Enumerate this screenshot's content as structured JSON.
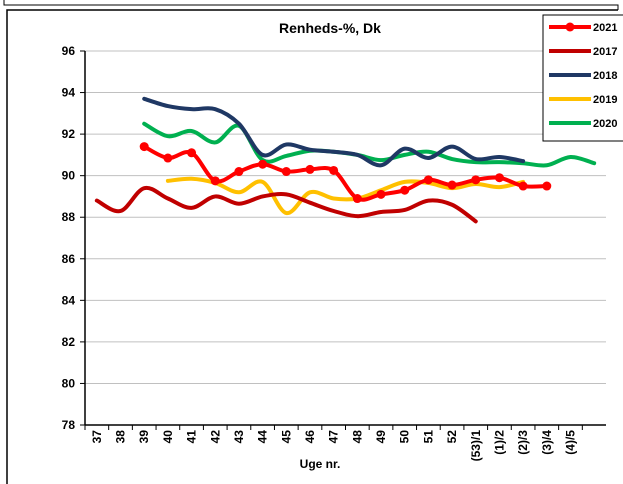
{
  "chart_data": {
    "type": "line",
    "title": "Renheds-%, Dk",
    "xlabel": "Uge nr.",
    "categories": [
      "37",
      "38",
      "39",
      "40",
      "41",
      "42",
      "43",
      "44",
      "45",
      "46",
      "47",
      "48",
      "49",
      "50",
      "51",
      "52",
      "(53)/1",
      "(1)/2",
      "(2)/3",
      "(3)/4",
      "(4)/5",
      null
    ],
    "ylim": [
      78,
      96
    ],
    "yticks": [
      78,
      80,
      82,
      84,
      86,
      88,
      90,
      92,
      94,
      96
    ],
    "grid": true,
    "legend": "upper right",
    "series": [
      {
        "name": "2021",
        "color": "#ff0000",
        "marker": true,
        "values": [
          null,
          null,
          91.4,
          90.85,
          91.1,
          89.75,
          90.2,
          90.55,
          90.2,
          90.3,
          90.25,
          88.9,
          89.1,
          89.3,
          89.8,
          89.55,
          89.8,
          89.9,
          89.5,
          89.5,
          null,
          null
        ]
      },
      {
        "name": "2017",
        "color": "#c00000",
        "values": [
          88.8,
          88.3,
          89.4,
          88.9,
          88.45,
          89.0,
          88.65,
          89.0,
          89.1,
          88.7,
          88.3,
          88.05,
          88.25,
          88.35,
          88.8,
          88.6,
          87.8,
          null,
          null,
          null,
          null,
          null
        ]
      },
      {
        "name": "2018",
        "color": "#1f3864",
        "values": [
          null,
          null,
          93.7,
          93.35,
          93.2,
          93.2,
          92.5,
          91.0,
          91.5,
          91.25,
          91.15,
          91.0,
          90.5,
          91.3,
          90.85,
          91.4,
          90.8,
          90.9,
          90.7,
          null,
          null,
          null
        ]
      },
      {
        "name": "2019",
        "color": "#ffc000",
        "values": [
          null,
          null,
          null,
          89.75,
          89.85,
          89.65,
          89.2,
          89.7,
          88.2,
          89.2,
          88.9,
          88.9,
          89.3,
          89.7,
          89.65,
          89.4,
          89.6,
          89.45,
          89.7,
          null,
          null,
          null
        ]
      },
      {
        "name": "2020",
        "color": "#00b050",
        "values": [
          null,
          null,
          92.5,
          91.9,
          92.15,
          91.6,
          92.4,
          90.75,
          90.95,
          91.2,
          91.15,
          91.0,
          90.75,
          91.0,
          91.15,
          90.8,
          90.65,
          90.65,
          90.6,
          90.5,
          90.9,
          90.6
        ]
      }
    ]
  }
}
